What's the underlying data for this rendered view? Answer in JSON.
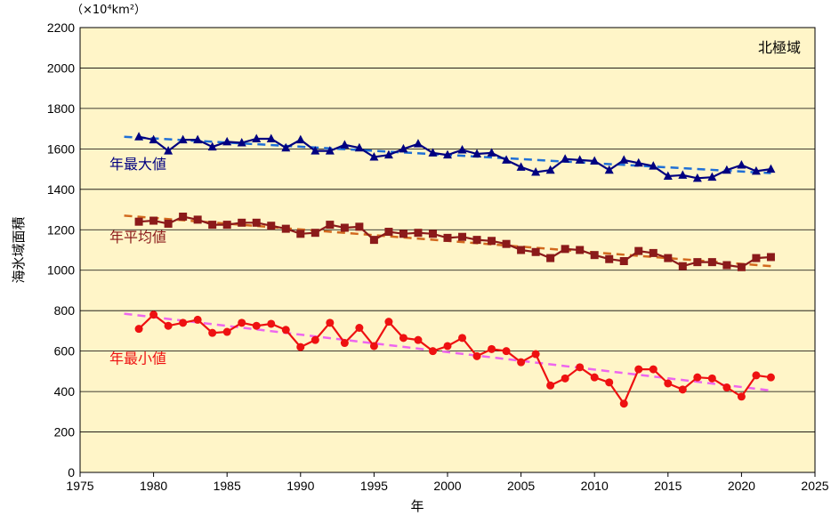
{
  "chart_data": {
    "type": "line",
    "region_label": "北極域",
    "unit": "（×10⁴km²）",
    "xlabel": "年",
    "ylabel": "海氷域面積",
    "xlim": [
      1975,
      2025
    ],
    "ylim": [
      0,
      2200
    ],
    "xticks": [
      1975,
      1980,
      1985,
      1990,
      1995,
      2000,
      2005,
      2010,
      2015,
      2020,
      2025
    ],
    "yticks": [
      0,
      200,
      400,
      600,
      800,
      1000,
      1200,
      1400,
      1600,
      1800,
      2000,
      2200
    ],
    "x": [
      1979,
      1980,
      1981,
      1982,
      1983,
      1984,
      1985,
      1986,
      1987,
      1988,
      1989,
      1990,
      1991,
      1992,
      1993,
      1994,
      1995,
      1996,
      1997,
      1998,
      1999,
      2000,
      2001,
      2002,
      2003,
      2004,
      2005,
      2006,
      2007,
      2008,
      2009,
      2010,
      2011,
      2012,
      2013,
      2014,
      2015,
      2016,
      2017,
      2018,
      2019,
      2020,
      2021,
      2022
    ],
    "series": [
      {
        "name": "年最大値",
        "color": "#000080",
        "trend_color": "#1f6fd6",
        "marker": "triangle",
        "values": [
          1660,
          1645,
          1590,
          1645,
          1645,
          1610,
          1635,
          1630,
          1650,
          1650,
          1605,
          1645,
          1590,
          1590,
          1620,
          1605,
          1560,
          1570,
          1600,
          1625,
          1580,
          1570,
          1595,
          1575,
          1580,
          1545,
          1510,
          1485,
          1495,
          1550,
          1545,
          1540,
          1495,
          1545,
          1530,
          1515,
          1465,
          1470,
          1455,
          1460,
          1495,
          1520,
          1490,
          1500
        ],
        "trend": [
          1660,
          1480
        ]
      },
      {
        "name": "年平均値",
        "color": "#8b1a1a",
        "trend_color": "#d2691e",
        "marker": "square",
        "values": [
          1240,
          1245,
          1230,
          1265,
          1250,
          1225,
          1225,
          1235,
          1235,
          1220,
          1205,
          1180,
          1185,
          1225,
          1210,
          1215,
          1150,
          1190,
          1180,
          1185,
          1180,
          1160,
          1165,
          1150,
          1145,
          1130,
          1100,
          1090,
          1060,
          1105,
          1100,
          1075,
          1055,
          1045,
          1095,
          1085,
          1060,
          1020,
          1040,
          1040,
          1025,
          1015,
          1060,
          1065
        ],
        "trend": [
          1270,
          1020
        ]
      },
      {
        "name": "年最小値",
        "color": "#ee1111",
        "trend_color": "#ee66ee",
        "marker": "circle",
        "values": [
          710,
          780,
          725,
          740,
          755,
          690,
          695,
          740,
          725,
          735,
          705,
          620,
          655,
          740,
          640,
          715,
          625,
          745,
          665,
          655,
          600,
          625,
          665,
          575,
          610,
          600,
          545,
          585,
          430,
          465,
          520,
          470,
          445,
          340,
          510,
          510,
          440,
          410,
          470,
          465,
          420,
          375,
          480,
          470
        ],
        "trend": [
          785,
          405
        ]
      }
    ],
    "label_anchor_x": 1977,
    "label_anchor_y": [
      1500,
      1140,
      540
    ],
    "grid": true
  }
}
